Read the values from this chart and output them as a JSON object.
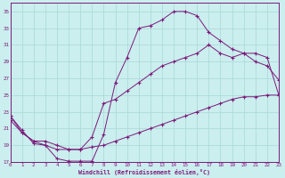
{
  "xlabel": "Windchill (Refroidissement éolien,°C)",
  "bg_color": "#cbeeee",
  "grid_color": "#a8d8d8",
  "line_color": "#7b1a7b",
  "xlim": [
    0,
    23
  ],
  "ylim": [
    17,
    36
  ],
  "yticks": [
    17,
    19,
    21,
    23,
    25,
    27,
    29,
    31,
    33,
    35
  ],
  "xticks": [
    0,
    1,
    2,
    3,
    4,
    5,
    6,
    7,
    8,
    9,
    10,
    11,
    12,
    13,
    14,
    15,
    16,
    17,
    18,
    19,
    20,
    21,
    22,
    23
  ],
  "curves": [
    {
      "x": [
        0,
        1,
        2,
        3,
        4,
        5,
        6,
        7,
        8,
        9,
        10,
        11,
        12,
        13,
        14,
        15,
        16,
        17,
        18,
        19,
        20,
        21,
        22,
        23
      ],
      "y": [
        22.5,
        20.8,
        19.2,
        19.0,
        17.4,
        17.1,
        17.1,
        17.1,
        20.3,
        26.5,
        29.5,
        33.0,
        33.3,
        34.0,
        35.0,
        35.0,
        34.5,
        32.5,
        31.5,
        30.5,
        30.0,
        29.0,
        28.5,
        26.8
      ]
    },
    {
      "x": [
        0,
        1,
        2,
        3,
        4,
        5,
        6,
        7,
        8,
        9,
        10,
        11,
        12,
        13,
        14,
        15,
        16,
        17,
        18,
        19,
        20,
        21,
        22,
        23
      ],
      "y": [
        22.5,
        20.5,
        19.5,
        19.5,
        19.0,
        18.5,
        18.5,
        20.0,
        24.0,
        24.5,
        25.5,
        26.5,
        27.5,
        28.5,
        29.0,
        29.5,
        30.0,
        31.0,
        30.0,
        29.5,
        30.0,
        30.0,
        29.5,
        25.0
      ]
    },
    {
      "x": [
        0,
        1,
        2,
        3,
        4,
        5,
        6,
        7,
        8,
        9,
        10,
        11,
        12,
        13,
        14,
        15,
        16,
        17,
        18,
        19,
        20,
        21,
        22,
        23
      ],
      "y": [
        22.0,
        20.5,
        19.5,
        19.0,
        18.5,
        18.5,
        18.5,
        18.8,
        19.0,
        19.5,
        20.0,
        20.5,
        21.0,
        21.5,
        22.0,
        22.5,
        23.0,
        23.5,
        24.0,
        24.5,
        24.8,
        24.8,
        25.0,
        25.0
      ]
    }
  ]
}
